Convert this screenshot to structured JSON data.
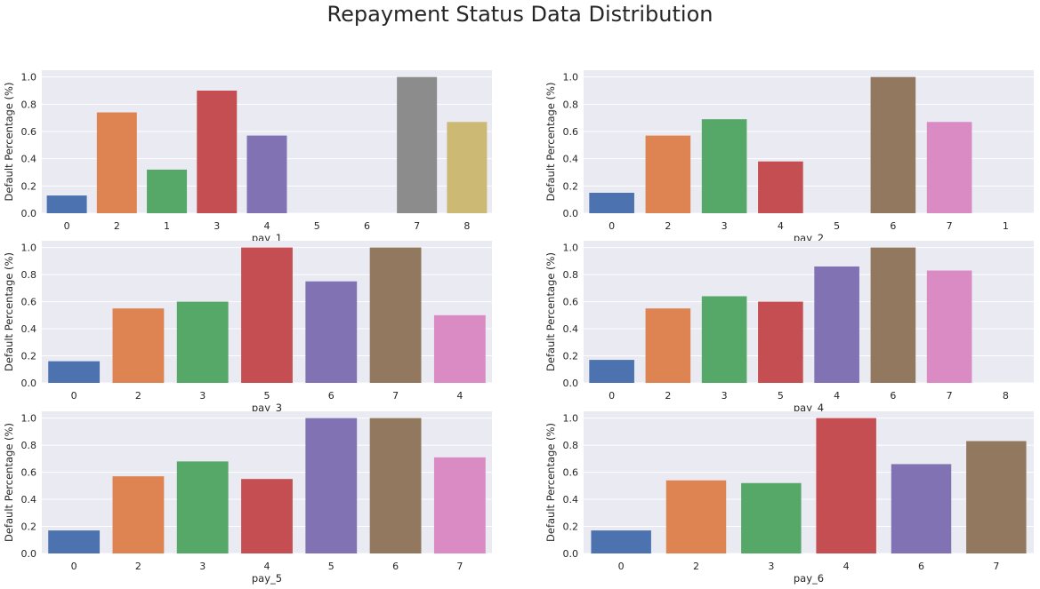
{
  "figure": {
    "title": "Repayment Status Data Distribution"
  },
  "palette": [
    "#4c72b0",
    "#dd8452",
    "#55a868",
    "#c44e52",
    "#8172b3",
    "#937860",
    "#da8bc3",
    "#8c8c8c",
    "#ccb974",
    "#64b5cd"
  ],
  "chart_data": [
    {
      "type": "bar",
      "categories": [
        "0",
        "2",
        "1",
        "3",
        "4",
        "5",
        "6",
        "7",
        "8"
      ],
      "values": [
        0.13,
        0.74,
        0.32,
        0.9,
        0.57,
        0,
        0,
        1.0,
        0.67
      ],
      "xlabel": "pay_1",
      "ylabel": "Default Percentage (%)",
      "ylim": [
        0,
        1.05
      ],
      "yticks": [
        "0.0",
        "0.2",
        "0.4",
        "0.6",
        "0.8",
        "1.0"
      ],
      "grid": true
    },
    {
      "type": "bar",
      "categories": [
        "0",
        "2",
        "3",
        "4",
        "5",
        "6",
        "7",
        "1"
      ],
      "values": [
        0.15,
        0.57,
        0.69,
        0.38,
        0,
        1.0,
        0.67,
        0
      ],
      "xlabel": "pay_2",
      "ylabel": "Default Percentage (%)",
      "ylim": [
        0,
        1.05
      ],
      "yticks": [
        "0.0",
        "0.2",
        "0.4",
        "0.6",
        "0.8",
        "1.0"
      ],
      "grid": true
    },
    {
      "type": "bar",
      "categories": [
        "0",
        "2",
        "3",
        "5",
        "6",
        "7",
        "4"
      ],
      "values": [
        0.16,
        0.55,
        0.6,
        1.0,
        0.75,
        1.0,
        0.5
      ],
      "xlabel": "pay_3",
      "ylabel": "Default Percentage (%)",
      "ylim": [
        0,
        1.05
      ],
      "yticks": [
        "0.0",
        "0.2",
        "0.4",
        "0.6",
        "0.8",
        "1.0"
      ],
      "grid": true
    },
    {
      "type": "bar",
      "categories": [
        "0",
        "2",
        "3",
        "5",
        "4",
        "6",
        "7",
        "8"
      ],
      "values": [
        0.17,
        0.55,
        0.64,
        0.6,
        0.86,
        1.0,
        0.83,
        0
      ],
      "xlabel": "pay_4",
      "ylabel": "Default Percentage (%)",
      "ylim": [
        0,
        1.05
      ],
      "yticks": [
        "0.0",
        "0.2",
        "0.4",
        "0.6",
        "0.8",
        "1.0"
      ],
      "grid": true
    },
    {
      "type": "bar",
      "categories": [
        "0",
        "2",
        "3",
        "4",
        "5",
        "6",
        "7"
      ],
      "values": [
        0.17,
        0.57,
        0.68,
        0.55,
        1.0,
        1.0,
        0.71
      ],
      "xlabel": "pay_5",
      "ylabel": "Default Percentage (%)",
      "ylim": [
        0,
        1.05
      ],
      "yticks": [
        "0.0",
        "0.2",
        "0.4",
        "0.6",
        "0.8",
        "1.0"
      ],
      "grid": true
    },
    {
      "type": "bar",
      "categories": [
        "0",
        "2",
        "3",
        "4",
        "6",
        "7"
      ],
      "values": [
        0.17,
        0.54,
        0.52,
        1.0,
        0.66,
        0.83
      ],
      "xlabel": "pay_6",
      "ylabel": "Default Percentage (%)",
      "ylim": [
        0,
        1.05
      ],
      "yticks": [
        "0.0",
        "0.2",
        "0.4",
        "0.6",
        "0.8",
        "1.0"
      ],
      "grid": true
    }
  ]
}
